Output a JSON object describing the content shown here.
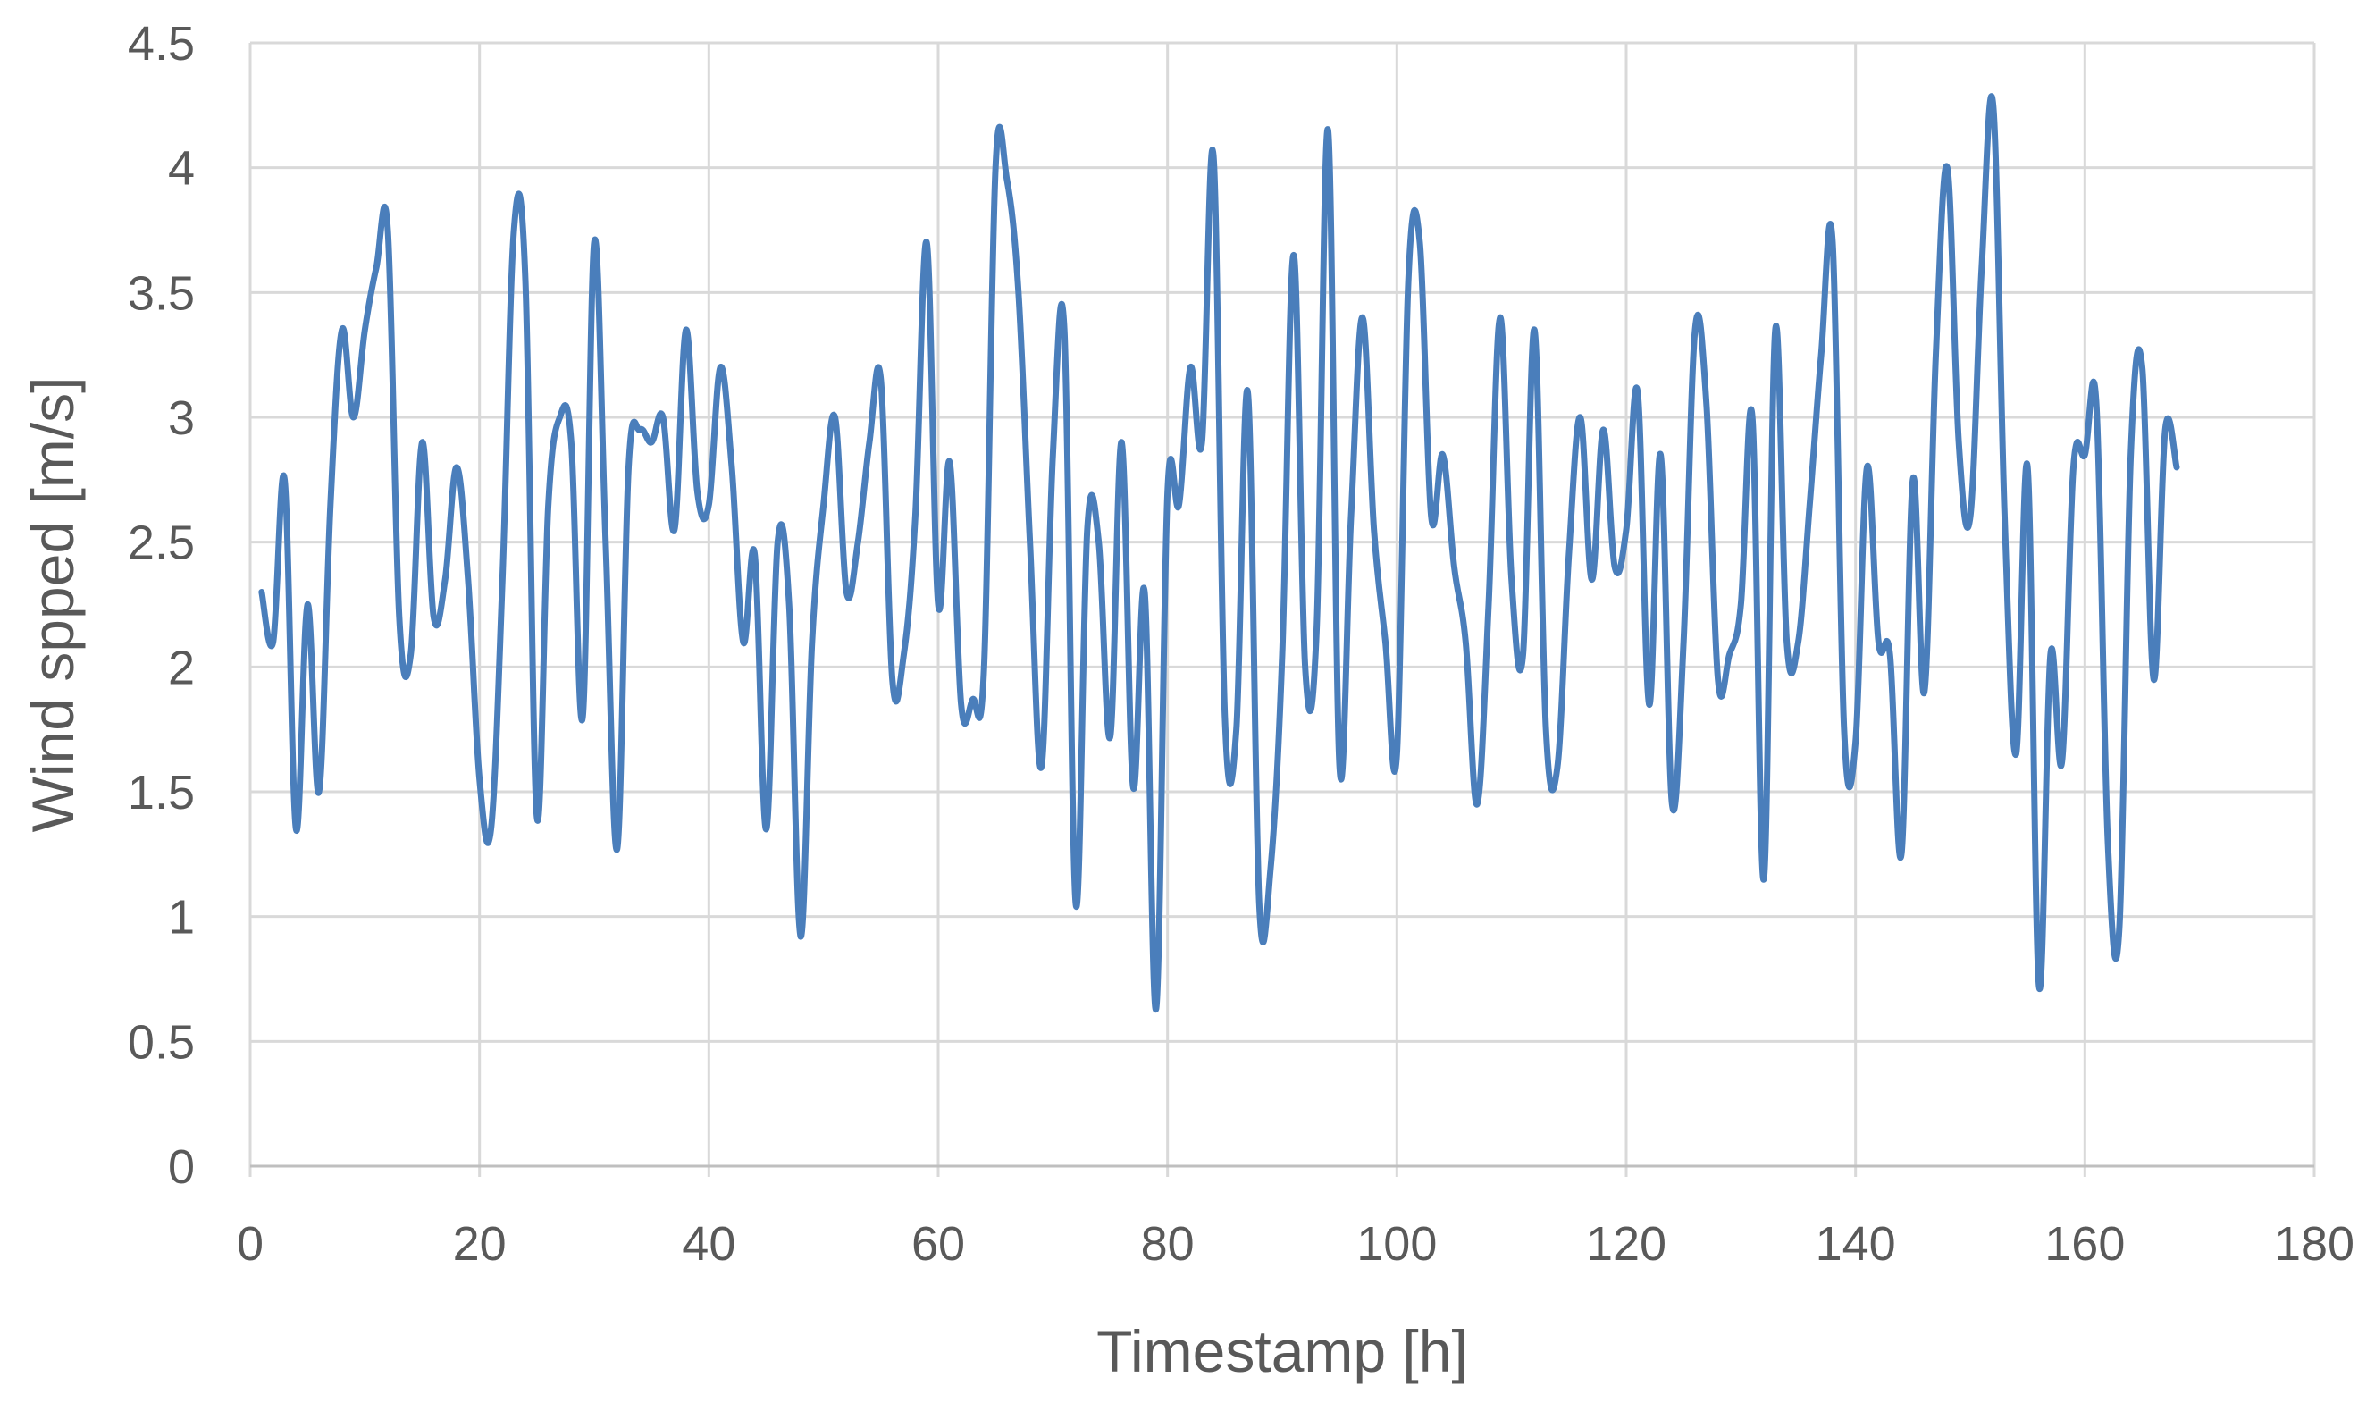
{
  "chart_data": {
    "type": "line",
    "title": "",
    "xlabel": "Timestamp [h]",
    "ylabel": "Wind spped [m/s]",
    "xlim": [
      0,
      180
    ],
    "ylim": [
      0,
      4.5
    ],
    "x_ticks": [
      0,
      20,
      40,
      60,
      80,
      100,
      120,
      140,
      160,
      180
    ],
    "y_ticks": [
      0,
      0.5,
      1,
      1.5,
      2,
      2.5,
      3,
      3.5,
      4,
      4.5
    ],
    "x_tick_labels": [
      "0",
      "20",
      "40",
      "60",
      "80",
      "100",
      "120",
      "140",
      "160",
      "180"
    ],
    "y_tick_labels": [
      "0",
      "0.5",
      "1",
      "1.5",
      "2",
      "2.5",
      "3",
      "3.5",
      "4",
      "4.5"
    ],
    "grid": true,
    "legend": "none",
    "series": [
      {
        "color": "#4a7ebb",
        "x": [
          1,
          2,
          3,
          4,
          5,
          6,
          7,
          8,
          9,
          10,
          11,
          12,
          13,
          14,
          15,
          16,
          17,
          18,
          19,
          20,
          21,
          22,
          23,
          24,
          25,
          26,
          27,
          28,
          29,
          30,
          31,
          32,
          33,
          34,
          35,
          36,
          37,
          38,
          39,
          40,
          41,
          42,
          43,
          44,
          45,
          46,
          47,
          48,
          49,
          50,
          51,
          52,
          53,
          54,
          55,
          56,
          57,
          58,
          59,
          60,
          61,
          62,
          63,
          64,
          65,
          66,
          67,
          68,
          69,
          70,
          71,
          72,
          73,
          74,
          75,
          76,
          77,
          78,
          79,
          80,
          81,
          82,
          83,
          84,
          85,
          86,
          87,
          88,
          89,
          90,
          91,
          92,
          93,
          94,
          95,
          96,
          97,
          98,
          99,
          100,
          101,
          102,
          103,
          104,
          105,
          106,
          107,
          108,
          109,
          110,
          111,
          112,
          113,
          114,
          115,
          116,
          117,
          118,
          119,
          120,
          121,
          122,
          123,
          124,
          125,
          126,
          127,
          128,
          129,
          130,
          131,
          132,
          133,
          134,
          135,
          136,
          137,
          138,
          139,
          140,
          141,
          142,
          143,
          144,
          145,
          146,
          147,
          148,
          149,
          150,
          151,
          152,
          153,
          154,
          155,
          156,
          157,
          158,
          159,
          160,
          161,
          162,
          163,
          164,
          165,
          166,
          167,
          168
        ],
        "values": [
          2.3,
          2.1,
          2.75,
          1.35,
          2.25,
          1.5,
          2.65,
          3.35,
          3.0,
          3.35,
          3.6,
          3.75,
          2.2,
          2.05,
          2.9,
          2.2,
          2.35,
          2.8,
          2.35,
          1.55,
          1.35,
          2.35,
          3.75,
          3.55,
          1.4,
          2.65,
          3.0,
          2.9,
          1.8,
          3.7,
          2.5,
          1.27,
          2.8,
          2.95,
          2.9,
          3.0,
          2.55,
          3.35,
          2.7,
          2.65,
          3.2,
          2.8,
          2.1,
          2.45,
          1.35,
          2.5,
          2.25,
          0.92,
          2.1,
          2.65,
          3.0,
          2.3,
          2.5,
          2.9,
          3.15,
          1.95,
          2.05,
          2.6,
          3.7,
          2.25,
          2.82,
          1.85,
          1.87,
          2.0,
          4.0,
          3.95,
          3.5,
          2.5,
          1.6,
          2.85,
          3.35,
          1.05,
          2.55,
          2.5,
          1.72,
          2.9,
          1.52,
          2.3,
          0.63,
          2.7,
          2.65,
          3.2,
          2.9,
          4.05,
          1.8,
          1.75,
          3.1,
          1.05,
          1.2,
          2.05,
          3.65,
          2.0,
          2.15,
          4.15,
          1.6,
          2.6,
          3.4,
          2.55,
          2.1,
          1.65,
          3.55,
          3.7,
          2.6,
          2.85,
          2.4,
          2.1,
          1.45,
          2.25,
          3.4,
          2.35,
          2.05,
          3.35,
          1.75,
          1.6,
          2.45,
          3.0,
          2.35,
          2.95,
          2.4,
          2.55,
          3.1,
          1.85,
          2.85,
          1.45,
          2.1,
          3.35,
          3.05,
          1.95,
          2.05,
          2.25,
          3.0,
          1.15,
          3.35,
          2.1,
          2.1,
          2.65,
          3.25,
          3.7,
          1.75,
          1.7,
          2.8,
          2.1,
          2.05,
          1.25,
          2.75,
          1.9,
          3.25,
          4.0,
          2.9,
          2.6,
          3.6,
          4.25,
          2.6,
          1.65,
          2.8,
          0.72,
          2.05,
          1.62,
          2.8,
          2.85,
          3.05,
          1.3,
          0.95,
          2.85,
          3.2,
          1.95,
          2.95,
          2.8
        ]
      }
    ]
  }
}
